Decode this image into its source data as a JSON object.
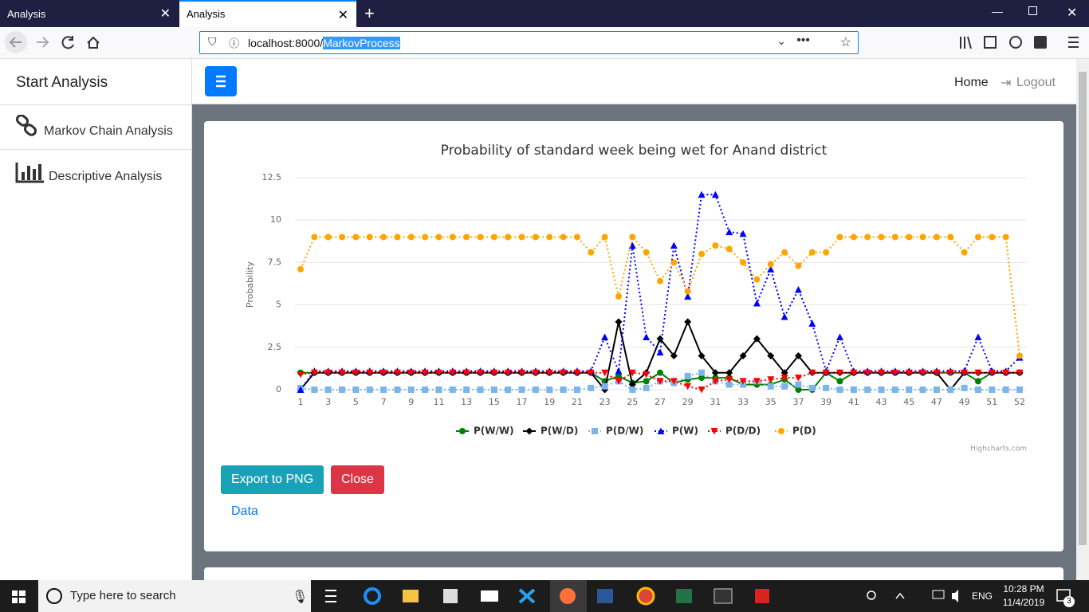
{
  "browser": {
    "tabs": [
      "Analysis",
      "Analysis"
    ],
    "url_host": "localhost:8000/",
    "url_path": "MarkovProcess"
  },
  "sidebar": {
    "title": "Start Analysis",
    "items": [
      "Markov Chain Analysis",
      "Descriptive Analysis"
    ]
  },
  "navbar": {
    "links": [
      "Home",
      "Logout"
    ]
  },
  "chart_data": {
    "type": "line",
    "title": "Probability of standard week being wet for Anand district",
    "y_label": "Probability",
    "credits": "Highcharts.com",
    "categories": [
      1,
      null,
      3,
      null,
      5,
      null,
      7,
      null,
      9,
      null,
      11,
      null,
      13,
      null,
      15,
      null,
      17,
      null,
      19,
      null,
      21,
      null,
      23,
      null,
      25,
      null,
      27,
      null,
      29,
      null,
      31,
      null,
      33,
      null,
      35,
      null,
      37,
      null,
      39,
      null,
      41,
      null,
      43,
      null,
      45,
      null,
      47,
      null,
      49,
      null,
      51,
      null,
      52
    ],
    "ylim": [
      0,
      12.5
    ],
    "yticks": [
      0,
      2.5,
      5,
      7.5,
      10,
      12.5
    ],
    "grid": true,
    "series": [
      {
        "name": "P(W/W)",
        "color": "#008000",
        "marker": "circle",
        "dash": false,
        "values": [
          1,
          1,
          1,
          1,
          1,
          1,
          1,
          1,
          1,
          1,
          1,
          1,
          1,
          1,
          1,
          1,
          1,
          1,
          1,
          1,
          1,
          1,
          0.5,
          0.8,
          0.4,
          0.5,
          1,
          0.4,
          0.6,
          0.7,
          0.7,
          0.7,
          0.3,
          0.3,
          0.3,
          0.6,
          0,
          0,
          1,
          0.5,
          1,
          1,
          1,
          1,
          1,
          1,
          1,
          1,
          1,
          0.5,
          1,
          1,
          1
        ]
      },
      {
        "name": "P(W/D)",
        "color": "#000000",
        "marker": "diamond",
        "dash": false,
        "values": [
          0,
          1,
          1,
          1,
          1,
          1,
          1,
          1,
          1,
          1,
          1,
          1,
          1,
          1,
          1,
          1,
          1,
          1,
          1,
          1,
          1,
          1,
          0,
          4,
          0.3,
          1,
          3,
          2,
          4,
          2,
          1,
          1,
          2,
          3,
          2,
          1,
          2,
          1,
          1,
          1,
          1,
          1,
          1,
          1,
          1,
          1,
          1,
          0,
          1,
          1,
          1,
          1,
          1
        ]
      },
      {
        "name": "P(D/W)",
        "color": "#7cb5ec",
        "marker": "square",
        "dash": true,
        "values": [
          0.1,
          0,
          0,
          0,
          0,
          0,
          0,
          0,
          0,
          0,
          0,
          0,
          0,
          0,
          0,
          0,
          0,
          0,
          0,
          0,
          0,
          0.1,
          0.2,
          0.5,
          0,
          0.1,
          0.5,
          0.4,
          0.8,
          1,
          0.5,
          0.3,
          0.3,
          0.5,
          0.2,
          0.2,
          0.3,
          0.1,
          0.1,
          0,
          0,
          0,
          0,
          0,
          0,
          0,
          0,
          0,
          0.1,
          0,
          0,
          0,
          0
        ]
      },
      {
        "name": "P(W)",
        "color": "#0000ff",
        "marker": "triangle",
        "dash": true,
        "values": [
          0,
          1.1,
          1.1,
          1.1,
          1.1,
          1.1,
          1.1,
          1.1,
          1.1,
          1.1,
          1.1,
          1.1,
          1.1,
          1.1,
          1.1,
          1.1,
          1.1,
          1.1,
          1.1,
          1.1,
          1.1,
          1.1,
          3.1,
          1.1,
          8.5,
          3.1,
          2.2,
          8.5,
          5.5,
          11.5,
          11.5,
          9.3,
          9.2,
          5.1,
          7.1,
          4.3,
          5.9,
          3.9,
          1.1,
          3.1,
          1.1,
          1.1,
          1.1,
          1.1,
          1.1,
          1.1,
          1.1,
          1.1,
          1.1,
          3.1,
          1.1,
          1.1,
          1.9
        ]
      },
      {
        "name": "P(D/D)",
        "color": "#ff0000",
        "marker": "triangle-down",
        "dash": true,
        "values": [
          0.9,
          1,
          1,
          1,
          1,
          1,
          1,
          1,
          1,
          1,
          1,
          1,
          1,
          1,
          1,
          1,
          1,
          1,
          1,
          1,
          1,
          1,
          1,
          0.5,
          1,
          0.9,
          0.5,
          0.5,
          0.2,
          0,
          0.5,
          0.6,
          0.5,
          0.5,
          0.6,
          0.7,
          0.7,
          1,
          1,
          1,
          1,
          1,
          1,
          1,
          1,
          1,
          1,
          1,
          1,
          1,
          1,
          1,
          1
        ]
      },
      {
        "name": "P(D)",
        "color": "#ffa500",
        "marker": "circle",
        "dash": true,
        "values": [
          7.1,
          9,
          9,
          9,
          9,
          9,
          9,
          9,
          9,
          9,
          9,
          9,
          9,
          9,
          9,
          9,
          9,
          9,
          9,
          9,
          9,
          8.1,
          9,
          5.5,
          9,
          8.1,
          6.4,
          7.5,
          5.8,
          8,
          8.5,
          8.3,
          7.5,
          6.5,
          7.4,
          8.1,
          7.3,
          8.1,
          8.1,
          9,
          9,
          9,
          9,
          9,
          9,
          9,
          9,
          9,
          8.1,
          9,
          9,
          9,
          2
        ]
      }
    ]
  },
  "actions": {
    "buttons": [
      "Export to PNG",
      "Close"
    ],
    "link": "Data"
  },
  "taskbar": {
    "search": "Type here to search",
    "language": "ENG",
    "time": "10:28 PM",
    "date": "11/4/2019",
    "notifications": "3"
  }
}
